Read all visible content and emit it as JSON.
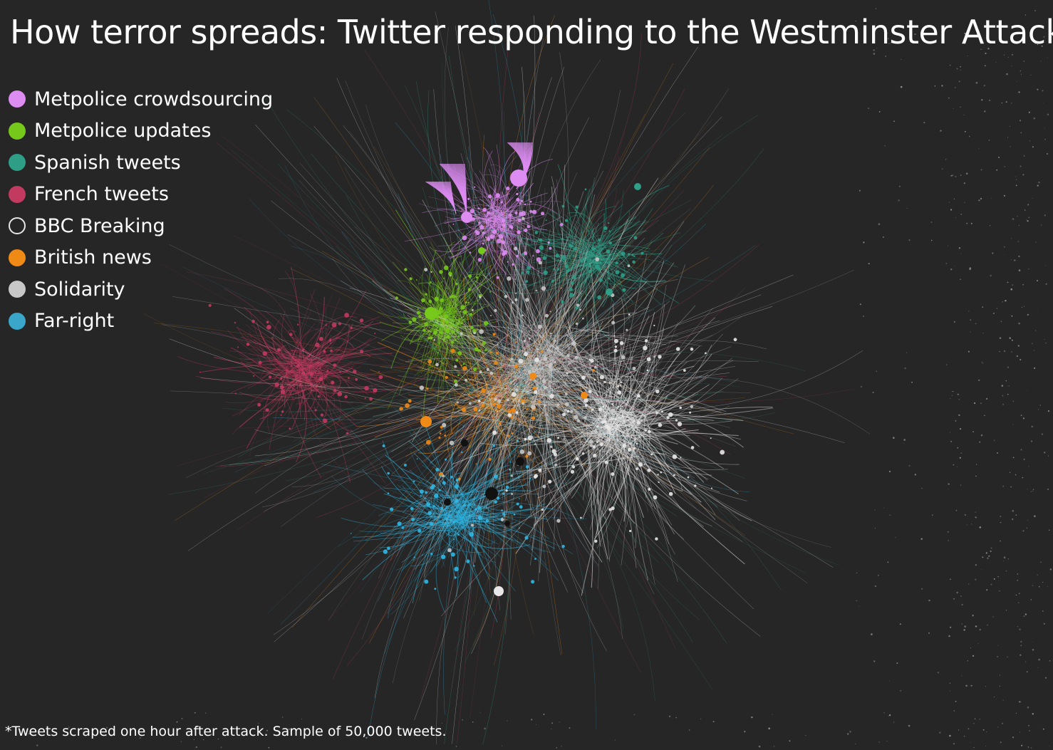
{
  "title": "How terror spreads: Twitter responding to the Westminster Attack",
  "legend": [
    {
      "label": "Metpolice crowdsourcing",
      "color": "#dd8cf2",
      "style": "filled"
    },
    {
      "label": "Metpolice updates",
      "color": "#76c81a",
      "style": "filled"
    },
    {
      "label": "Spanish tweets",
      "color": "#2e9e87",
      "style": "filled"
    },
    {
      "label": "French tweets",
      "color": "#c23a60",
      "style": "filled"
    },
    {
      "label": "BBC Breaking",
      "color": "#262626",
      "style": "hollow"
    },
    {
      "label": "British news",
      "color": "#f08a16",
      "style": "filled"
    },
    {
      "label": "Solidarity",
      "color": "#c8c8c8",
      "style": "filled"
    },
    {
      "label": "Far-right",
      "color": "#3aa6c9",
      "style": "filled"
    }
  ],
  "footnote": "*Tweets scraped one hour after attack. Sample of 50,000 tweets.",
  "background_color": "#262626"
}
